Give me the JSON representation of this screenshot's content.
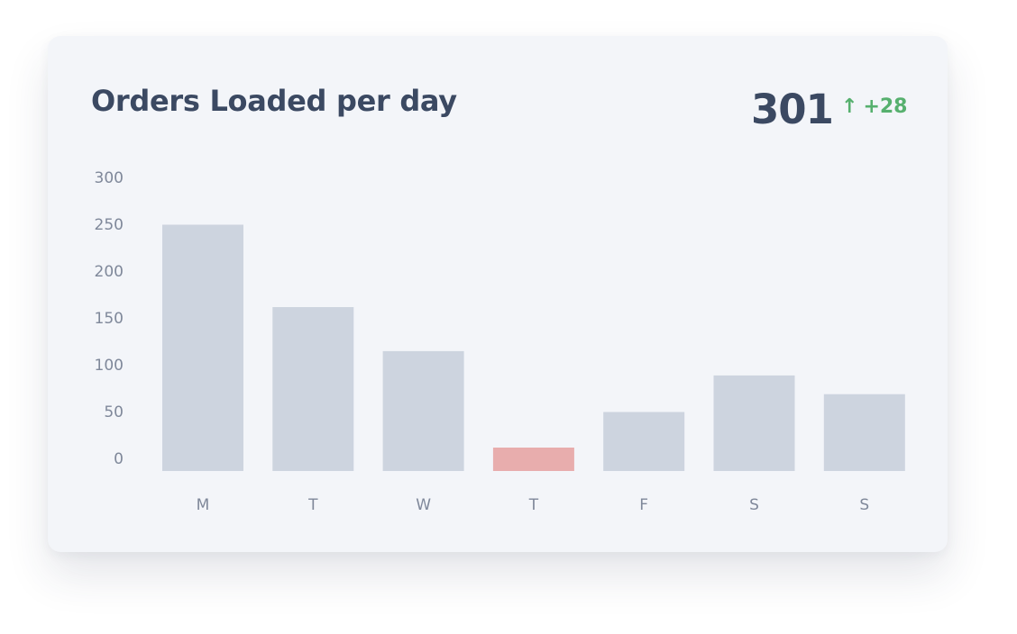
{
  "header": {
    "title": "Orders Loaded per day",
    "total": "301",
    "delta": "+28",
    "delta_icon": "arrow-up-icon"
  },
  "colors": {
    "bar": "#cdd4df",
    "bar_highlight": "#e8adad",
    "text_dark": "#3b4962",
    "text_axis": "#7f889a",
    "delta_positive": "#56b06e",
    "card_background": "#f3f5f9"
  },
  "chart_data": {
    "type": "bar",
    "categories": [
      "M",
      "T",
      "W",
      "T",
      "F",
      "S",
      "S"
    ],
    "values": [
      263,
      175,
      128,
      25,
      63,
      102,
      82
    ],
    "highlight_index": 3,
    "title": "Orders Loaded per day",
    "xlabel": "",
    "ylabel": "",
    "ylim": [
      0,
      300
    ],
    "yticks": [
      0,
      50,
      100,
      150,
      200,
      250,
      300
    ],
    "grid": false,
    "legend": "none"
  }
}
